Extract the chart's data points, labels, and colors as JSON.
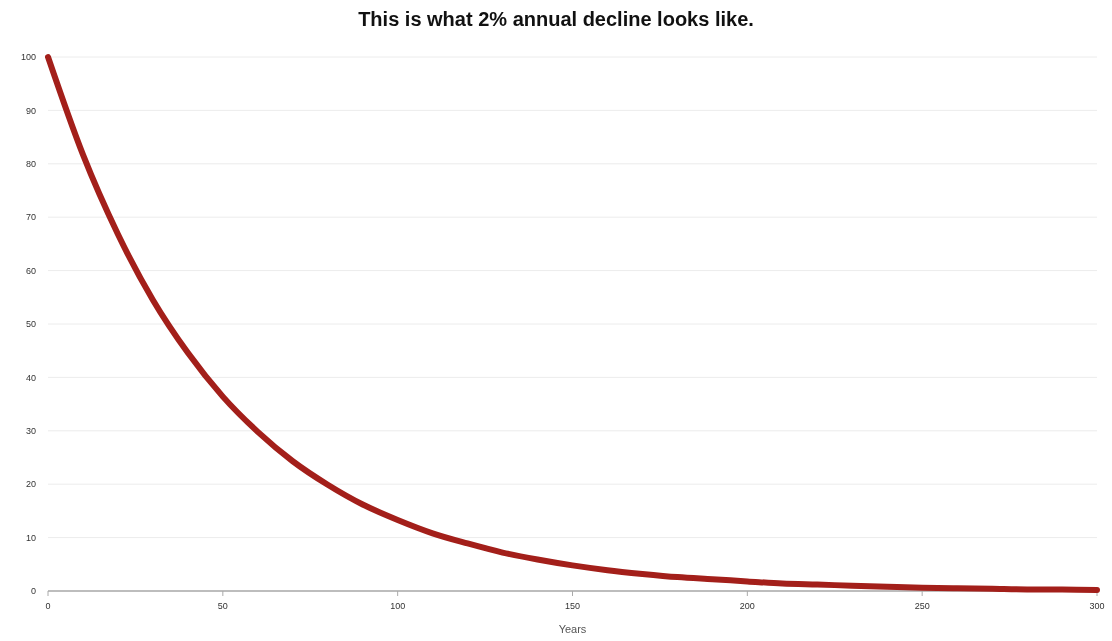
{
  "chart_data": {
    "type": "line",
    "title": "This is what 2% annual decline looks like.",
    "xlabel": "Years",
    "x": [
      0,
      10,
      20,
      30,
      40,
      50,
      60,
      70,
      80,
      90,
      100,
      110,
      120,
      130,
      140,
      150,
      160,
      170,
      180,
      190,
      200,
      210,
      220,
      230,
      240,
      250,
      260,
      270,
      280,
      290,
      300
    ],
    "series": [
      {
        "color": "#a31f1a",
        "values": [
          100,
          81.7,
          66.8,
          54.5,
          44.6,
          36.4,
          29.8,
          24.3,
          19.9,
          16.2,
          13.3,
          10.8,
          8.9,
          7.2,
          5.9,
          4.8,
          3.9,
          3.2,
          2.6,
          2.2,
          1.8,
          1.4,
          1.2,
          1.0,
          0.8,
          0.6,
          0.5,
          0.4,
          0.3,
          0.3,
          0.2
        ]
      }
    ],
    "xlim": [
      0,
      300
    ],
    "xticks": [
      0,
      50,
      100,
      150,
      200,
      250,
      300
    ],
    "ylim": [
      0,
      100
    ],
    "yticks": [
      0,
      10,
      20,
      30,
      40,
      50,
      60,
      70,
      80,
      90,
      100
    ],
    "grid": "y",
    "marker": "none",
    "line_style": "solid"
  }
}
